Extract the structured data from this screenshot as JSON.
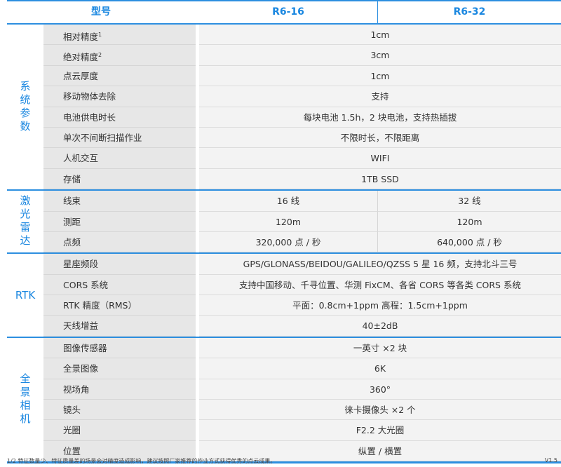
{
  "header": {
    "col0": "型号",
    "col1": "R6-16",
    "col2": "R6-32"
  },
  "sections": [
    {
      "label": "系统参数",
      "rows": [
        {
          "label": "相对精度",
          "sup": "1",
          "value": "1cm"
        },
        {
          "label": "绝对精度",
          "sup": "2",
          "value": "3cm"
        },
        {
          "label": "点云厚度",
          "value": "1cm"
        },
        {
          "label": "移动物体去除",
          "value": "支持"
        },
        {
          "label": "电池供电时长",
          "value": "每块电池 1.5h，2 块电池，支持热插拔"
        },
        {
          "label": "单次不间断扫描作业",
          "value": "不限时长，不限距离"
        },
        {
          "label": "人机交互",
          "value": "WIFI"
        },
        {
          "label": "存储",
          "value": "1TB  SSD"
        }
      ]
    },
    {
      "label": "激光雷达",
      "rows": [
        {
          "label": "线束",
          "v1": "16 线",
          "v2": "32 线"
        },
        {
          "label": "测距",
          "v1": "120m",
          "v2": "120m"
        },
        {
          "label": "点频",
          "v1": "320,000 点 / 秒",
          "v2": "640,000 点 / 秒"
        }
      ]
    },
    {
      "label": "RTK",
      "rows": [
        {
          "label": "星座频段",
          "value": "GPS/GLONASS/BEIDOU/GALILEO/QZSS  5 星 16 频，支持北斗三号"
        },
        {
          "label": "CORS 系统",
          "value": "支持中国移动、千寻位置、华测 FixCM、各省 CORS 等各类 CORS 系统"
        },
        {
          "label": "RTK 精度（RMS）",
          "value": "平面：0.8cm+1ppm  高程：1.5cm+1ppm"
        },
        {
          "label": "天线增益",
          "value": "40±2dB"
        }
      ]
    },
    {
      "label": "全景相机",
      "rows": [
        {
          "label": "图像传感器",
          "value": "一英寸 ×2 块"
        },
        {
          "label": "全景图像",
          "value": "6K"
        },
        {
          "label": "视场角",
          "value": "360°"
        },
        {
          "label": "镜头",
          "value": "徕卡摄像头 ×2 个"
        },
        {
          "label": "光圈",
          "value": "F2.2 大光圈"
        },
        {
          "label": "位置",
          "value": "纵置 / 横置"
        }
      ]
    }
  ],
  "footer": {
    "note": "1/2 特征数量少、特征质量差的场景会对精度造成影响，建议按照厂家推荐的作业方式获得优秀的点云成果。",
    "version": "V1.5"
  }
}
